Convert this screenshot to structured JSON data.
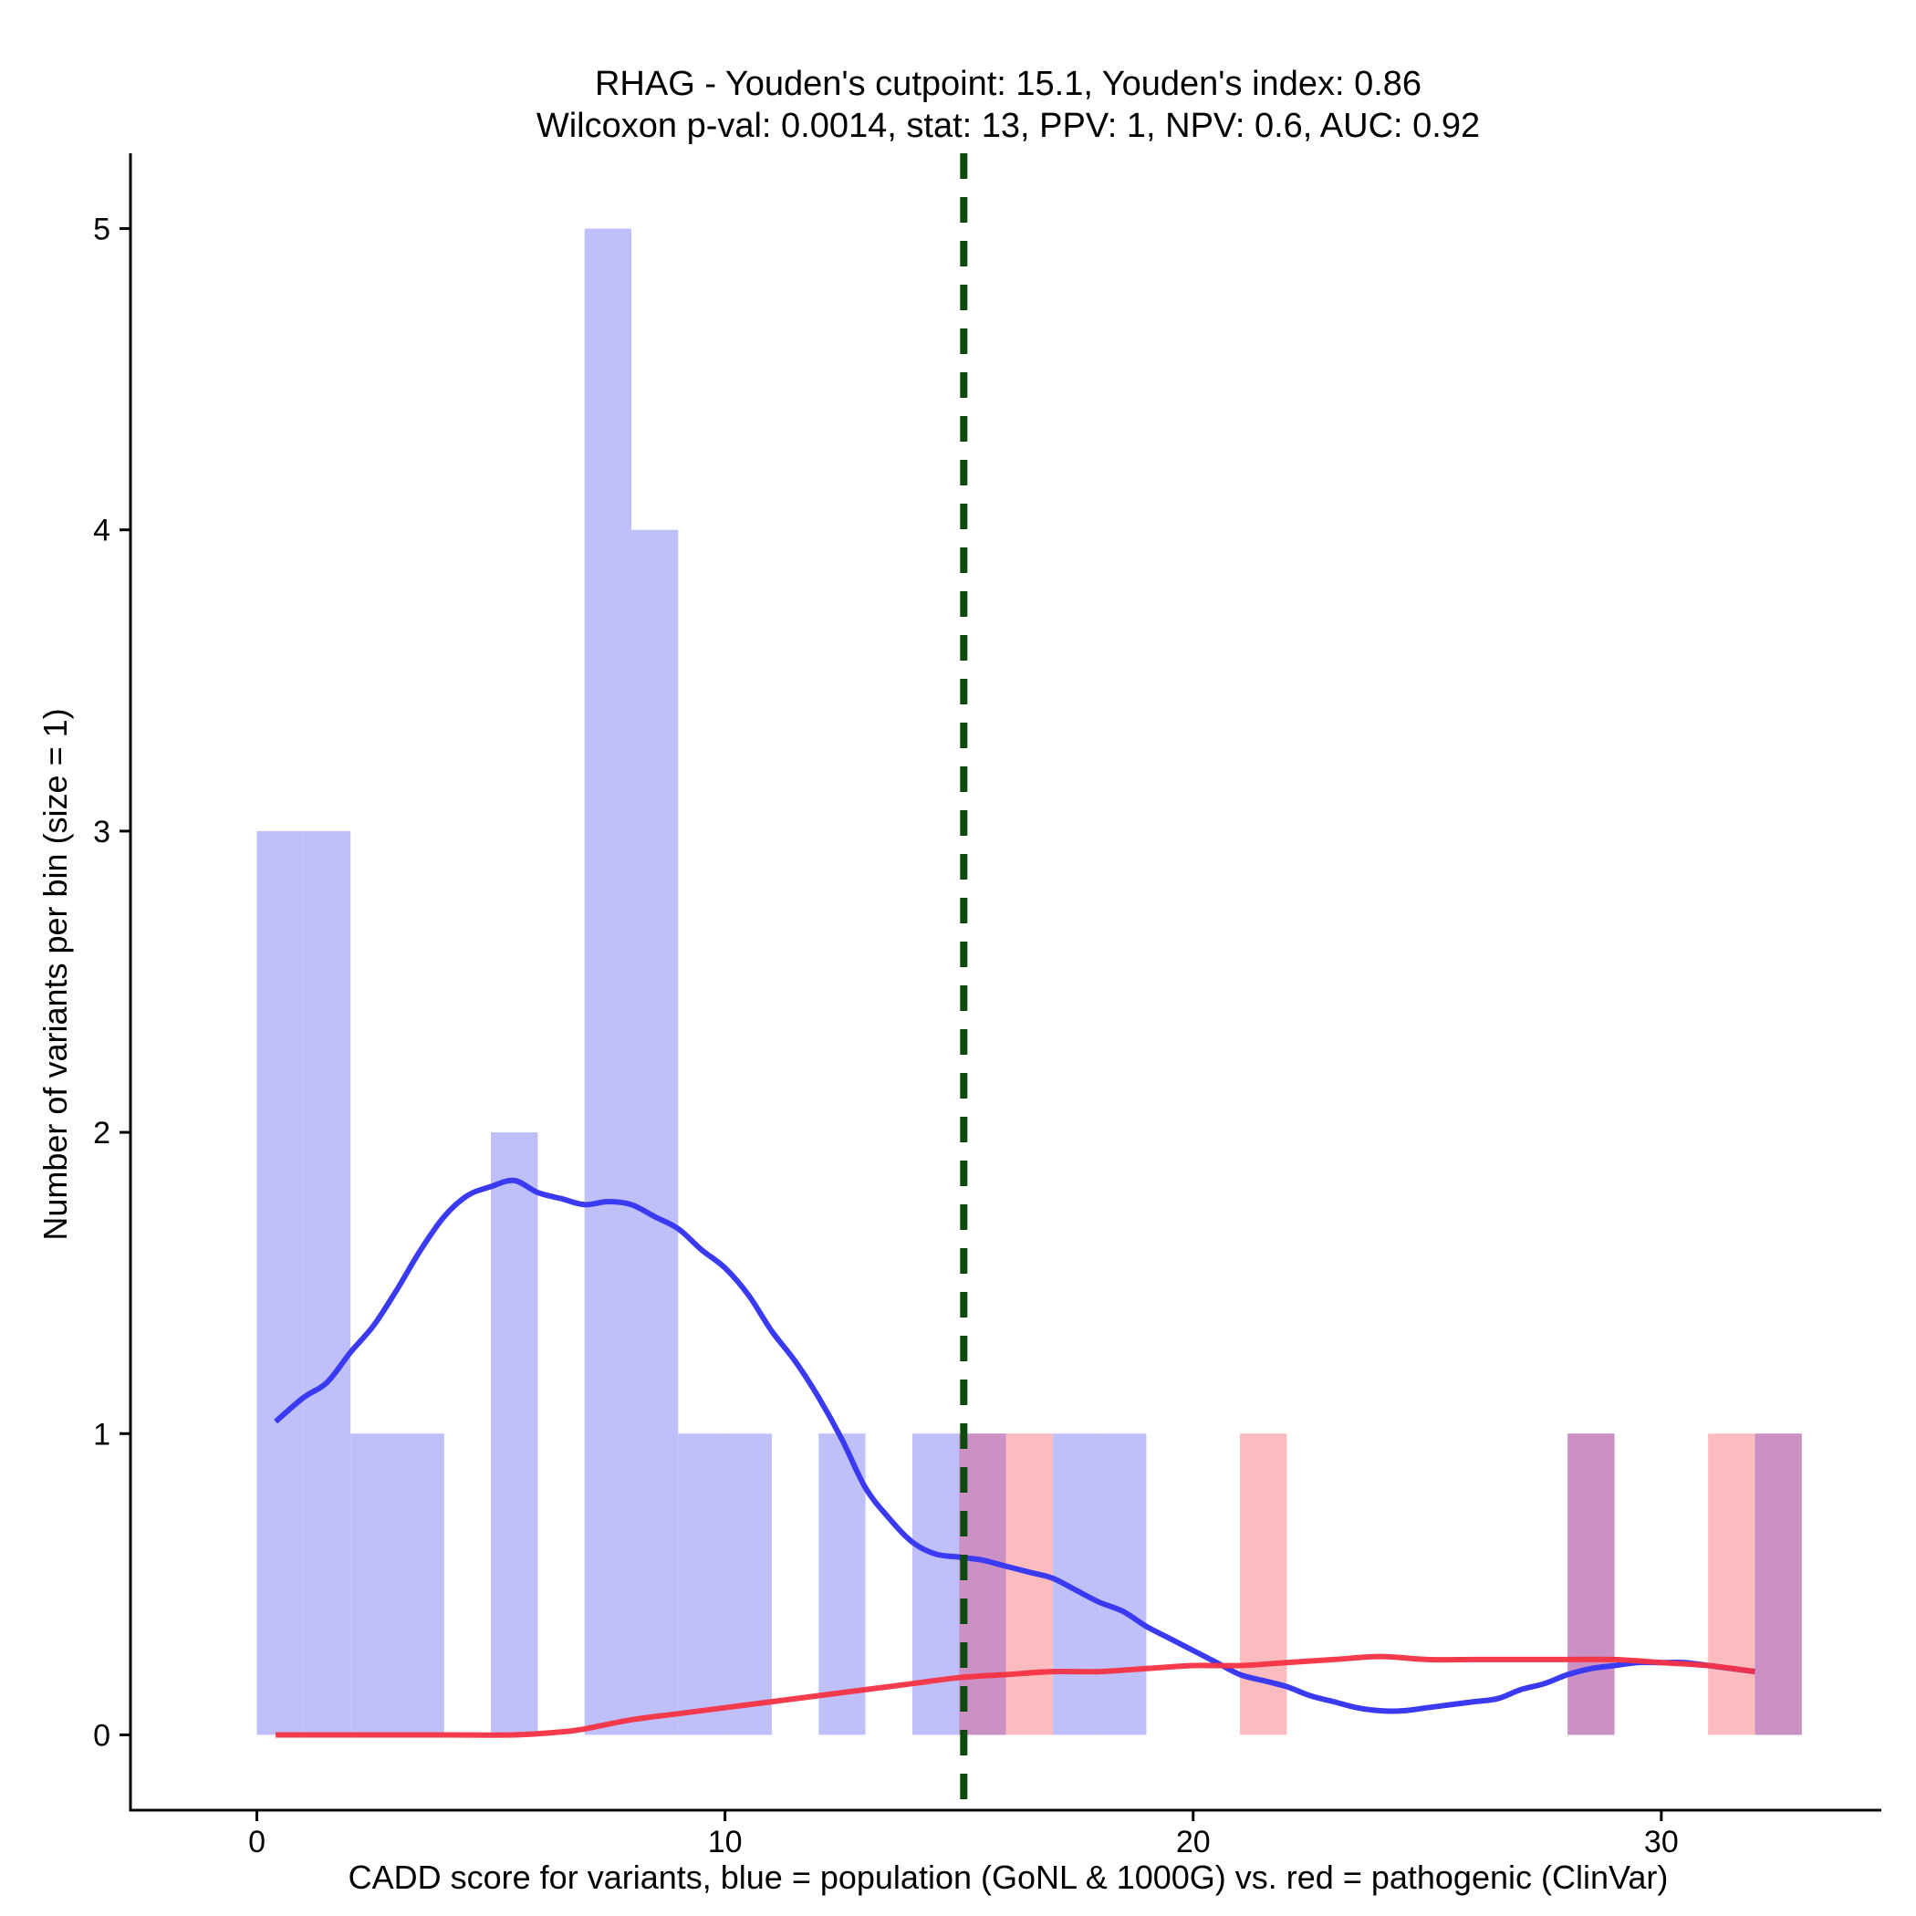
{
  "chart_data": {
    "type": "histogram",
    "title_line1": "RHAG - Youden's cutpoint: 15.1, Youden's index: 0.86",
    "title_line2": "Wilcoxon p-val: 0.0014, stat: 13, PPV: 1, NPV: 0.6, AUC: 0.92",
    "xlabel": "CADD score for variants, blue = population (GoNL & 1000G) vs. red = pathogenic (ClinVar)",
    "ylabel": "Number of variants per bin (size = 1)",
    "xlim": [
      -2.7,
      34.7
    ],
    "ylim": [
      -0.25,
      5.25
    ],
    "x_ticks": [
      0,
      10,
      20,
      30
    ],
    "x_tick_labels": [
      "0",
      "10",
      "20",
      "30"
    ],
    "y_ticks": [
      0,
      1,
      2,
      3,
      4,
      5
    ],
    "y_tick_labels": [
      "0",
      "1",
      "2",
      "3",
      "4",
      "5"
    ],
    "bin_size": 1,
    "cutpoint": 15.1,
    "colors": {
      "population_bar": "#bfbffa",
      "pathogenic_bar": "#fbbcbf",
      "overlap_bar": "#cb90c4",
      "population_line": "#3a3af2",
      "pathogenic_line": "#f53242",
      "cutpoint_line": "#0d4a0d",
      "axis": "#000000"
    },
    "series": [
      {
        "name": "population (GoNL & 1000G)",
        "bins": [
          {
            "x0": 0,
            "count": 3
          },
          {
            "x0": 1,
            "count": 3
          },
          {
            "x0": 2,
            "count": 1
          },
          {
            "x0": 3,
            "count": 1
          },
          {
            "x0": 5,
            "count": 2
          },
          {
            "x0": 7,
            "count": 5
          },
          {
            "x0": 8,
            "count": 4
          },
          {
            "x0": 9,
            "count": 1
          },
          {
            "x0": 10,
            "count": 1
          },
          {
            "x0": 12,
            "count": 1
          },
          {
            "x0": 14,
            "count": 1
          },
          {
            "x0": 15,
            "count": 1
          },
          {
            "x0": 17,
            "count": 1
          },
          {
            "x0": 18,
            "count": 1
          },
          {
            "x0": 28,
            "count": 1
          },
          {
            "x0": 32,
            "count": 1
          }
        ],
        "density": [
          [
            0.4,
            1.04
          ],
          [
            1.0,
            1.12
          ],
          [
            1.5,
            1.17
          ],
          [
            2.0,
            1.27
          ],
          [
            2.5,
            1.36
          ],
          [
            3.0,
            1.48
          ],
          [
            3.5,
            1.61
          ],
          [
            4.0,
            1.72
          ],
          [
            4.5,
            1.79
          ],
          [
            5.0,
            1.82
          ],
          [
            5.5,
            1.84
          ],
          [
            6.0,
            1.8
          ],
          [
            6.5,
            1.78
          ],
          [
            7.0,
            1.76
          ],
          [
            7.5,
            1.77
          ],
          [
            8.0,
            1.76
          ],
          [
            8.5,
            1.72
          ],
          [
            9.0,
            1.68
          ],
          [
            9.5,
            1.61
          ],
          [
            10.0,
            1.55
          ],
          [
            10.5,
            1.46
          ],
          [
            11.0,
            1.34
          ],
          [
            11.5,
            1.24
          ],
          [
            12.0,
            1.12
          ],
          [
            12.5,
            0.98
          ],
          [
            13.0,
            0.82
          ],
          [
            13.5,
            0.72
          ],
          [
            14.0,
            0.64
          ],
          [
            14.5,
            0.6
          ],
          [
            15.0,
            0.59
          ],
          [
            15.5,
            0.58
          ],
          [
            16.0,
            0.56
          ],
          [
            16.5,
            0.54
          ],
          [
            17.0,
            0.52
          ],
          [
            17.5,
            0.48
          ],
          [
            18.0,
            0.44
          ],
          [
            18.5,
            0.41
          ],
          [
            19.0,
            0.36
          ],
          [
            19.5,
            0.32
          ],
          [
            20.0,
            0.28
          ],
          [
            20.5,
            0.24
          ],
          [
            21.0,
            0.2
          ],
          [
            21.5,
            0.18
          ],
          [
            22.0,
            0.16
          ],
          [
            22.5,
            0.13
          ],
          [
            23.0,
            0.11
          ],
          [
            23.5,
            0.09
          ],
          [
            24.0,
            0.08
          ],
          [
            24.5,
            0.08
          ],
          [
            25.0,
            0.09
          ],
          [
            25.5,
            0.1
          ],
          [
            26.0,
            0.11
          ],
          [
            26.5,
            0.12
          ],
          [
            27.0,
            0.15
          ],
          [
            27.5,
            0.17
          ],
          [
            28.0,
            0.2
          ],
          [
            28.5,
            0.22
          ],
          [
            29.0,
            0.23
          ],
          [
            29.5,
            0.24
          ],
          [
            30.0,
            0.24
          ],
          [
            30.5,
            0.24
          ],
          [
            31.0,
            0.23
          ],
          [
            31.5,
            0.22
          ],
          [
            32.0,
            0.21
          ]
        ]
      },
      {
        "name": "pathogenic (ClinVar)",
        "bins": [
          {
            "x0": 15,
            "count": 1
          },
          {
            "x0": 16,
            "count": 1
          },
          {
            "x0": 21,
            "count": 1
          },
          {
            "x0": 28,
            "count": 1
          },
          {
            "x0": 31,
            "count": 1
          },
          {
            "x0": 32,
            "count": 1
          }
        ],
        "density": [
          [
            0.4,
            0.0
          ],
          [
            2.0,
            0.0
          ],
          [
            4.0,
            0.0
          ],
          [
            5.5,
            0.0
          ],
          [
            6.5,
            0.01
          ],
          [
            7.0,
            0.02
          ],
          [
            8.0,
            0.05
          ],
          [
            9.0,
            0.07
          ],
          [
            10.0,
            0.09
          ],
          [
            11.0,
            0.11
          ],
          [
            12.0,
            0.13
          ],
          [
            13.0,
            0.15
          ],
          [
            14.0,
            0.17
          ],
          [
            15.0,
            0.19
          ],
          [
            16.0,
            0.2
          ],
          [
            17.0,
            0.21
          ],
          [
            18.0,
            0.21
          ],
          [
            19.0,
            0.22
          ],
          [
            20.0,
            0.23
          ],
          [
            21.0,
            0.23
          ],
          [
            22.0,
            0.24
          ],
          [
            23.0,
            0.25
          ],
          [
            24.0,
            0.26
          ],
          [
            25.0,
            0.25
          ],
          [
            26.0,
            0.25
          ],
          [
            27.0,
            0.25
          ],
          [
            28.0,
            0.25
          ],
          [
            29.0,
            0.25
          ],
          [
            30.0,
            0.24
          ],
          [
            31.0,
            0.23
          ],
          [
            32.0,
            0.21
          ]
        ]
      }
    ]
  }
}
